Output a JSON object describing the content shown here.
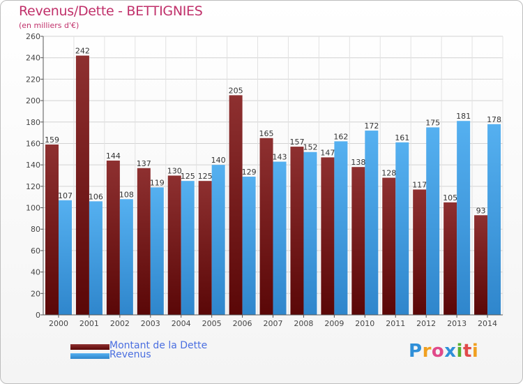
{
  "title": "Revenus/Dette - BETTIGNIES",
  "subtitle": "(en milliers d'€)",
  "legend": [
    {
      "label": "Montant de la Dette",
      "color": "#7a1a1a"
    },
    {
      "label": "Revenus",
      "color": "#4aa6ea"
    }
  ],
  "logo": {
    "text": "Proxiti",
    "letters": [
      "P",
      "r",
      "o",
      "x",
      "i",
      "t",
      "i"
    ]
  },
  "chart_data": {
    "type": "bar",
    "categories": [
      "2000",
      "2001",
      "2002",
      "2003",
      "2004",
      "2005",
      "2006",
      "2007",
      "2008",
      "2009",
      "2010",
      "2011",
      "2012",
      "2013",
      "2014"
    ],
    "series": [
      {
        "name": "Montant de la Dette",
        "color": "#7a1a1a",
        "values": [
          159,
          242,
          144,
          137,
          130,
          125,
          205,
          165,
          157,
          147,
          138,
          128,
          117,
          105,
          93
        ]
      },
      {
        "name": "Revenus",
        "color": "#4aa6ea",
        "values": [
          107,
          106,
          108,
          119,
          125,
          140,
          129,
          143,
          152,
          162,
          172,
          161,
          175,
          181,
          178
        ]
      }
    ],
    "yticks": [
      0,
      20,
      40,
      60,
      80,
      100,
      120,
      140,
      160,
      180,
      200,
      220,
      240,
      260
    ],
    "ylim": [
      0,
      260
    ],
    "grid": true,
    "legend_position": "bottom-left"
  }
}
